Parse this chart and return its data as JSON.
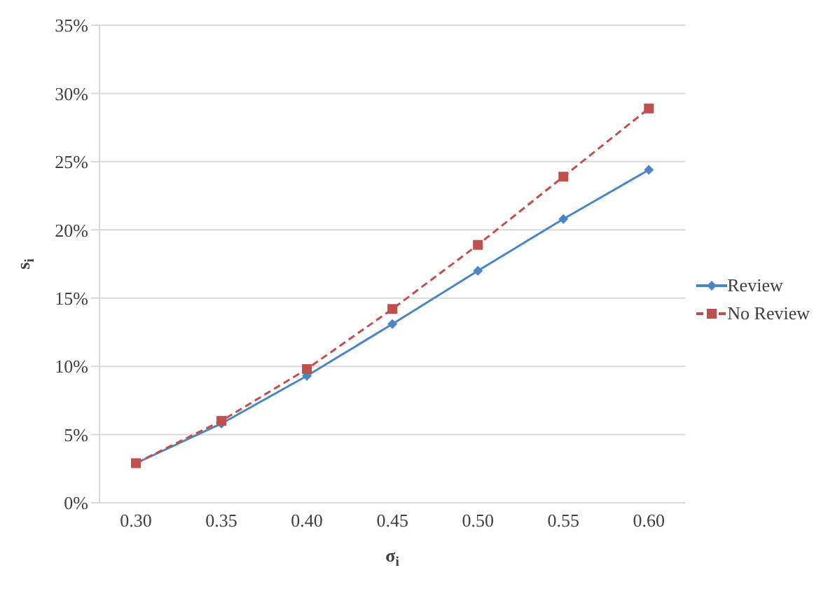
{
  "chart_data": {
    "type": "line",
    "xlabel": "σ$_{i}$",
    "ylabel": "s$_{i}$",
    "categories": [
      "0.30",
      "0.35",
      "0.40",
      "0.45",
      "0.50",
      "0.55",
      "0.60"
    ],
    "series": [
      {
        "name": "Review",
        "color": "#4a86c5",
        "marker": "diamond",
        "line_style": "solid",
        "values": [
          2.9,
          5.8,
          9.3,
          13.1,
          17.0,
          20.8,
          24.4
        ]
      },
      {
        "name": "No Review",
        "color": "#c0504d",
        "marker": "square",
        "line_style": "dashed",
        "values": [
          2.9,
          6.0,
          9.8,
          14.2,
          18.9,
          23.9,
          28.9
        ]
      }
    ],
    "ylim": [
      0,
      35
    ],
    "yticks": [
      {
        "value": 0,
        "label": "0%"
      },
      {
        "value": 5,
        "label": "5%"
      },
      {
        "value": 10,
        "label": "10%"
      },
      {
        "value": 15,
        "label": "15%"
      },
      {
        "value": 20,
        "label": "20%"
      },
      {
        "value": 25,
        "label": "25%"
      },
      {
        "value": 30,
        "label": "30%"
      },
      {
        "value": 35,
        "label": "35%"
      }
    ],
    "grid": "y",
    "legend": "right"
  }
}
